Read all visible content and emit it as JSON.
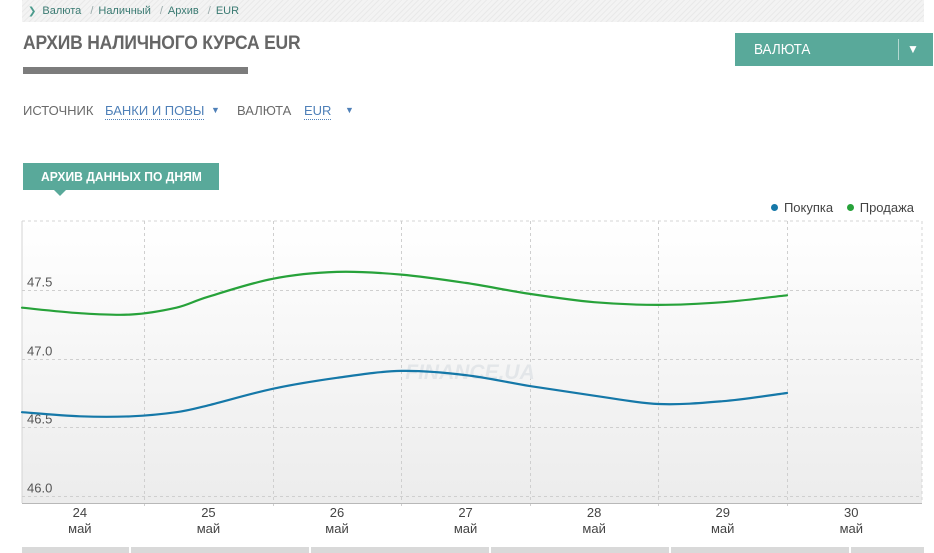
{
  "breadcrumb": {
    "items": [
      "Валюта",
      "Наличный",
      "Архив",
      "EUR"
    ]
  },
  "page": {
    "title": "АРХИВ НАЛИЧНОГО КУРСА EUR"
  },
  "currency_button": {
    "label": "ВАЛЮТА",
    "arrow": "▼"
  },
  "filters": {
    "source_label": "ИСТОЧНИК",
    "source_value": "БАНКИ И ПОВЫ",
    "currency_label": "ВАЛЮТА",
    "currency_value": "EUR",
    "arrow": "▼"
  },
  "section": {
    "tag": "АРХИВ ДАННЫХ ПО ДНЯМ"
  },
  "watermark": "FINANCE.UA",
  "colors": {
    "accent": "#59a99a",
    "buy": "#1578a8",
    "sell": "#27a23a"
  },
  "chart_data": {
    "type": "line",
    "title": "",
    "xlabel": "",
    "ylabel": "",
    "x": [
      24,
      25,
      26,
      27,
      28,
      29
    ],
    "x_ticks": [
      {
        "day": "24",
        "month": "май"
      },
      {
        "day": "25",
        "month": "май"
      },
      {
        "day": "26",
        "month": "май"
      },
      {
        "day": "27",
        "month": "май"
      },
      {
        "day": "28",
        "month": "май"
      },
      {
        "day": "29",
        "month": "май"
      },
      {
        "day": "30",
        "month": "май"
      }
    ],
    "xlim": [
      23.55,
      30.55
    ],
    "ylim": [
      45.95,
      48.0
    ],
    "y_ticks": [
      46.0,
      46.5,
      47.0,
      47.5
    ],
    "y_tick_labels": [
      "46.0",
      "46.5",
      "47.0",
      "47.5"
    ],
    "grid": true,
    "legend_position": "top-right",
    "series": [
      {
        "name": "Покупка",
        "color": "#1578a8",
        "points": [
          [
            23.55,
            46.61
          ],
          [
            24.0,
            46.58
          ],
          [
            24.4,
            46.58
          ],
          [
            24.75,
            46.61
          ],
          [
            25.0,
            46.66
          ],
          [
            25.5,
            46.78
          ],
          [
            26.0,
            46.86
          ],
          [
            26.5,
            46.91
          ],
          [
            27.0,
            46.88
          ],
          [
            27.5,
            46.8
          ],
          [
            28.0,
            46.73
          ],
          [
            28.5,
            46.67
          ],
          [
            29.0,
            46.69
          ],
          [
            29.5,
            46.75
          ]
        ]
      },
      {
        "name": "Продажа",
        "color": "#27a23a",
        "points": [
          [
            23.55,
            47.37
          ],
          [
            24.0,
            47.33
          ],
          [
            24.4,
            47.32
          ],
          [
            24.75,
            47.37
          ],
          [
            25.0,
            47.45
          ],
          [
            25.5,
            47.58
          ],
          [
            26.0,
            47.63
          ],
          [
            26.5,
            47.61
          ],
          [
            27.0,
            47.55
          ],
          [
            27.5,
            47.47
          ],
          [
            28.0,
            47.41
          ],
          [
            28.5,
            47.39
          ],
          [
            29.0,
            47.41
          ],
          [
            29.5,
            47.46
          ]
        ]
      }
    ]
  }
}
